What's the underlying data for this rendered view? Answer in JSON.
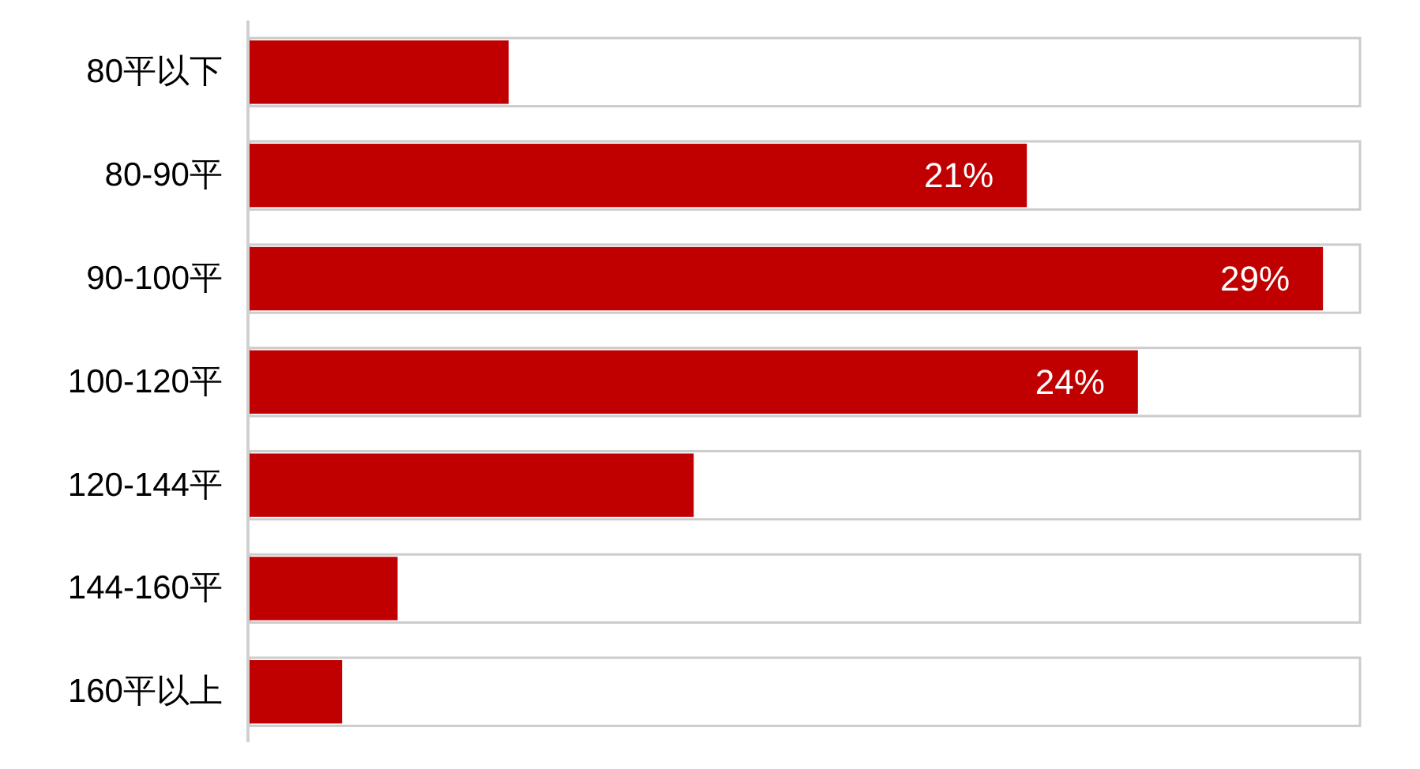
{
  "chart_data": {
    "type": "bar",
    "orientation": "horizontal",
    "categories": [
      "80平以下",
      "80-90平",
      "90-100平",
      "100-120平",
      "120-144平",
      "144-160平",
      "160平以上"
    ],
    "values": [
      7,
      21,
      29,
      24,
      12,
      4,
      2.5
    ],
    "color": "#c00000",
    "value_labels": [
      null,
      "21%",
      "29%",
      "24%",
      null,
      null,
      null
    ],
    "xlim": [
      0,
      30
    ],
    "tick_labels": "y"
  }
}
